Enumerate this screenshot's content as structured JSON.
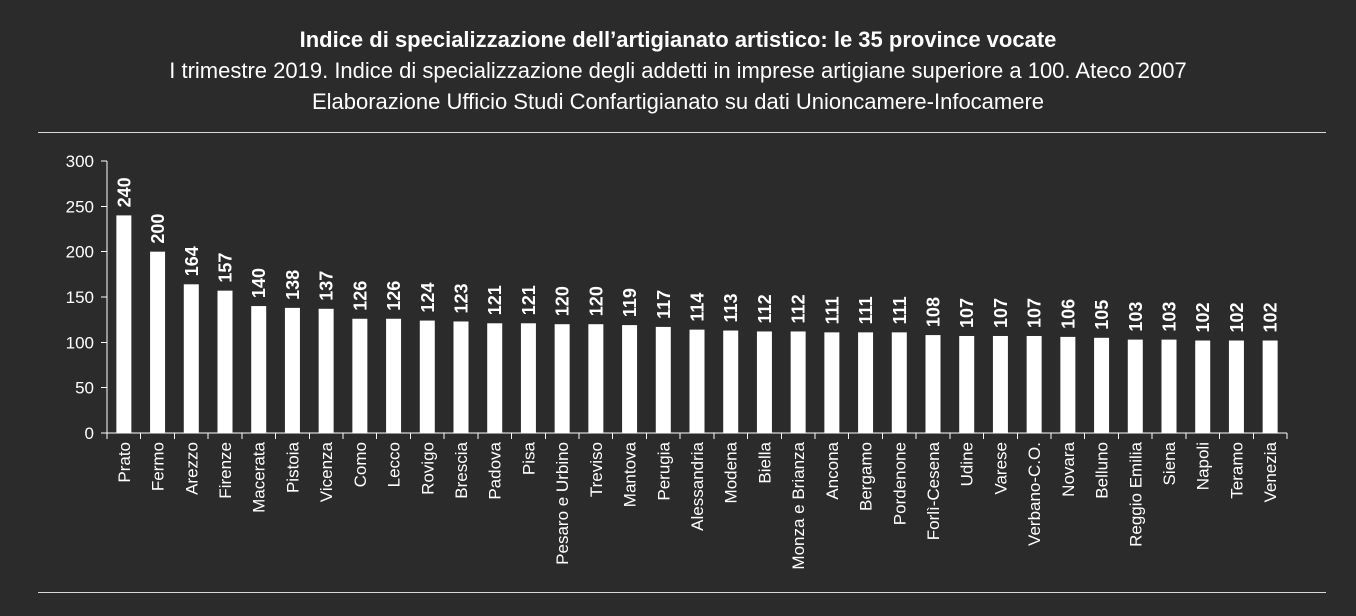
{
  "colors": {
    "background": "#2b2b2b",
    "bar": "#ffffff",
    "text": "#ffffff",
    "axis": "#ffffff",
    "rule": "#d9d9d9"
  },
  "chart_data": {
    "type": "bar",
    "title": "Indice di specializzazione dell’artigianato artistico: le 35 province vocate",
    "subtitle": [
      "I trimestre 2019. Indice di specializzazione degli addetti in imprese artigiane superiore a 100. Ateco 2007",
      "Elaborazione Ufficio Studi Confartigianato su dati Unioncamere-Infocamere"
    ],
    "ylim": [
      0,
      300
    ],
    "yticks": [
      0,
      50,
      100,
      150,
      200,
      250,
      300
    ],
    "grid": false,
    "data_labels": true,
    "categories": [
      "Prato",
      "Fermo",
      "Arezzo",
      "Firenze",
      "Macerata",
      "Pistoia",
      "Vicenza",
      "Como",
      "Lecco",
      "Rovigo",
      "Brescia",
      "Padova",
      "Pisa",
      "Pesaro e Urbino",
      "Treviso",
      "Mantova",
      "Perugia",
      "Alessandria",
      "Modena",
      "Biella",
      "Monza e Brianza",
      "Ancona",
      "Bergamo",
      "Pordenone",
      "Forlì-Cesena",
      "Udine",
      "Varese",
      "Verbano-C.O.",
      "Novara",
      "Belluno",
      "Reggio Emilia",
      "Siena",
      "Napoli",
      "Teramo",
      "Venezia"
    ],
    "values": [
      240,
      200,
      164,
      157,
      140,
      138,
      137,
      126,
      126,
      124,
      123,
      121,
      121,
      120,
      120,
      119,
      117,
      114,
      113,
      112,
      112,
      111,
      111,
      111,
      108,
      107,
      107,
      107,
      106,
      105,
      103,
      103,
      102,
      102,
      102
    ]
  }
}
